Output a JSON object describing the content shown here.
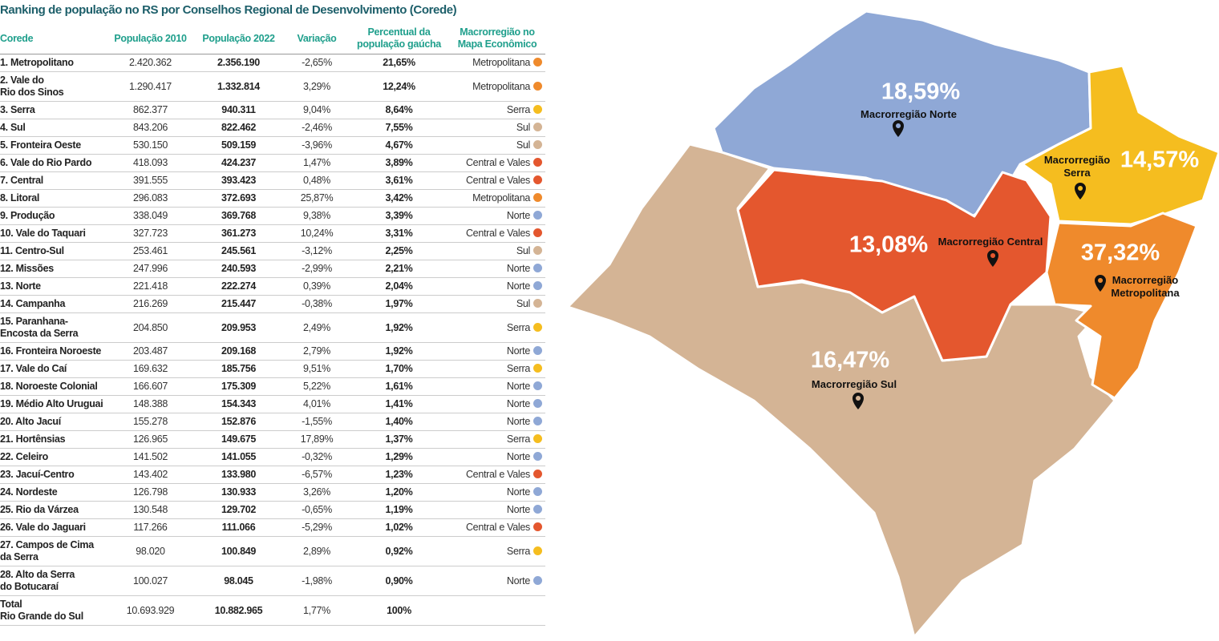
{
  "header": {
    "title": "Ranking de população no RS por Conselhos Regional de Desenvolvimento (Corede)"
  },
  "table": {
    "columns": [
      "Corede",
      "População 2010",
      "População 2022",
      "Variação",
      "Percentual da\npopulação gaúcha",
      "Macrorregião no\nMapa Econômico"
    ],
    "rows": [
      {
        "corede": "1. Metropolitano",
        "pop2010": "2.420.362",
        "pop2022": "2.356.190",
        "variacao": "-2,65%",
        "percentual": "21,65%",
        "macro": "Metropolitana",
        "color": "#ef8a2c"
      },
      {
        "corede": "2. Vale do\nRio dos Sinos",
        "pop2010": "1.290.417",
        "pop2022": "1.332.814",
        "variacao": "3,29%",
        "percentual": "12,24%",
        "macro": "Metropolitana",
        "color": "#ef8a2c"
      },
      {
        "corede": "3. Serra",
        "pop2010": "862.377",
        "pop2022": "940.311",
        "variacao": "9,04%",
        "percentual": "8,64%",
        "macro": "Serra",
        "color": "#f5bd1f"
      },
      {
        "corede": "4. Sul",
        "pop2010": "843.206",
        "pop2022": "822.462",
        "variacao": "-2,46%",
        "percentual": "7,55%",
        "macro": "Sul",
        "color": "#d4b495"
      },
      {
        "corede": "5. Fronteira Oeste",
        "pop2010": "530.150",
        "pop2022": "509.159",
        "variacao": "-3,96%",
        "percentual": "4,67%",
        "macro": "Sul",
        "color": "#d4b495"
      },
      {
        "corede": "6. Vale do Rio Pardo",
        "pop2010": "418.093",
        "pop2022": "424.237",
        "variacao": "1,47%",
        "percentual": "3,89%",
        "macro": "Central e Vales",
        "color": "#e4572e"
      },
      {
        "corede": "7. Central",
        "pop2010": "391.555",
        "pop2022": "393.423",
        "variacao": "0,48%",
        "percentual": "3,61%",
        "macro": "Central e Vales",
        "color": "#e4572e"
      },
      {
        "corede": "8. Litoral",
        "pop2010": "296.083",
        "pop2022": "372.693",
        "variacao": "25,87%",
        "percentual": "3,42%",
        "macro": "Metropolitana",
        "color": "#ef8a2c"
      },
      {
        "corede": "9. Produção",
        "pop2010": "338.049",
        "pop2022": "369.768",
        "variacao": "9,38%",
        "percentual": "3,39%",
        "macro": "Norte",
        "color": "#8fa8d6"
      },
      {
        "corede": "10. Vale do Taquari",
        "pop2010": "327.723",
        "pop2022": "361.273",
        "variacao": "10,24%",
        "percentual": "3,31%",
        "macro": "Central e Vales",
        "color": "#e4572e"
      },
      {
        "corede": "11. Centro-Sul",
        "pop2010": "253.461",
        "pop2022": "245.561",
        "variacao": "-3,12%",
        "percentual": "2,25%",
        "macro": "Sul",
        "color": "#d4b495"
      },
      {
        "corede": "12. Missões",
        "pop2010": "247.996",
        "pop2022": "240.593",
        "variacao": "-2,99%",
        "percentual": "2,21%",
        "macro": "Norte",
        "color": "#8fa8d6"
      },
      {
        "corede": "13. Norte",
        "pop2010": "221.418",
        "pop2022": "222.274",
        "variacao": "0,39%",
        "percentual": "2,04%",
        "macro": "Norte",
        "color": "#8fa8d6"
      },
      {
        "corede": "14. Campanha",
        "pop2010": "216.269",
        "pop2022": "215.447",
        "variacao": "-0,38%",
        "percentual": "1,97%",
        "macro": "Sul",
        "color": "#d4b495"
      },
      {
        "corede": "15. Paranhana-\nEncosta da Serra",
        "pop2010": "204.850",
        "pop2022": "209.953",
        "variacao": "2,49%",
        "percentual": "1,92%",
        "macro": "Serra",
        "color": "#f5bd1f"
      },
      {
        "corede": "16. Fronteira Noroeste",
        "pop2010": "203.487",
        "pop2022": "209.168",
        "variacao": "2,79%",
        "percentual": "1,92%",
        "macro": "Norte",
        "color": "#8fa8d6"
      },
      {
        "corede": "17. Vale do Caí",
        "pop2010": "169.632",
        "pop2022": "185.756",
        "variacao": "9,51%",
        "percentual": "1,70%",
        "macro": "Serra",
        "color": "#f5bd1f"
      },
      {
        "corede": "18. Noroeste Colonial",
        "pop2010": "166.607",
        "pop2022": "175.309",
        "variacao": "5,22%",
        "percentual": "1,61%",
        "macro": "Norte",
        "color": "#8fa8d6"
      },
      {
        "corede": "19. Médio Alto Uruguai",
        "pop2010": "148.388",
        "pop2022": "154.343",
        "variacao": "4,01%",
        "percentual": "1,41%",
        "macro": "Norte",
        "color": "#8fa8d6"
      },
      {
        "corede": "20. Alto Jacuí",
        "pop2010": "155.278",
        "pop2022": "152.876",
        "variacao": "-1,55%",
        "percentual": "1,40%",
        "macro": "Norte",
        "color": "#8fa8d6"
      },
      {
        "corede": "21. Hortênsias",
        "pop2010": "126.965",
        "pop2022": "149.675",
        "variacao": "17,89%",
        "percentual": "1,37%",
        "macro": "Serra",
        "color": "#f5bd1f"
      },
      {
        "corede": "22. Celeiro",
        "pop2010": "141.502",
        "pop2022": "141.055",
        "variacao": "-0,32%",
        "percentual": "1,29%",
        "macro": "Norte",
        "color": "#8fa8d6"
      },
      {
        "corede": "23. Jacuí-Centro",
        "pop2010": "143.402",
        "pop2022": "133.980",
        "variacao": "-6,57%",
        "percentual": "1,23%",
        "macro": "Central e Vales",
        "color": "#e4572e"
      },
      {
        "corede": "24. Nordeste",
        "pop2010": "126.798",
        "pop2022": "130.933",
        "variacao": "3,26%",
        "percentual": "1,20%",
        "macro": "Norte",
        "color": "#8fa8d6"
      },
      {
        "corede": "25. Rio da Várzea",
        "pop2010": "130.548",
        "pop2022": "129.702",
        "variacao": "-0,65%",
        "percentual": "1,19%",
        "macro": "Norte",
        "color": "#8fa8d6"
      },
      {
        "corede": "26. Vale do Jaguari",
        "pop2010": "117.266",
        "pop2022": "111.066",
        "variacao": "-5,29%",
        "percentual": "1,02%",
        "macro": "Central e Vales",
        "color": "#e4572e"
      },
      {
        "corede": "27. Campos de Cima\nda Serra",
        "pop2010": "98.020",
        "pop2022": "100.849",
        "variacao": "2,89%",
        "percentual": "0,92%",
        "macro": "Serra",
        "color": "#f5bd1f"
      },
      {
        "corede": "28. Alto da Serra\ndo Botucaraí",
        "pop2010": "100.027",
        "pop2022": "98.045",
        "variacao": "-1,98%",
        "percentual": "0,90%",
        "macro": "Norte",
        "color": "#8fa8d6"
      },
      {
        "corede": "Total\nRio Grande do Sul",
        "pop2010": "10.693.929",
        "pop2022": "10.882.965",
        "variacao": "1,77%",
        "percentual": "100%"
      }
    ]
  },
  "map": {
    "regions": [
      {
        "name": "Macrorregião Norte",
        "percent": "18,59%"
      },
      {
        "name": "Macrorregião\nSerra",
        "percent": "14,57%"
      },
      {
        "name": "Macrorregião Central",
        "percent": "13,08%"
      },
      {
        "name": "Macrorregião\nMetropolitana",
        "percent": "37,32%"
      },
      {
        "name": "Macrorregião Sul",
        "percent": "16,47%"
      }
    ]
  }
}
